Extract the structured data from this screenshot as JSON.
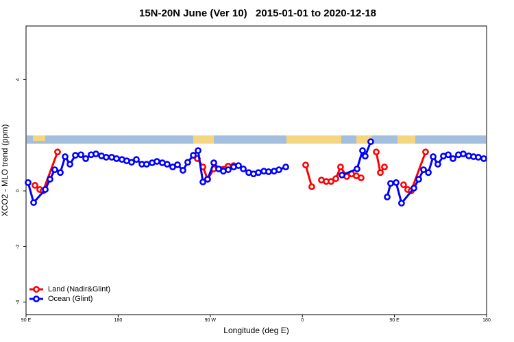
{
  "chart_data": {
    "type": "line",
    "title": "15N-20N June (Ver 10)   2015-01-01 to 2020-12-18",
    "xlabel": "Longitude (deg E)",
    "ylabel": "XCO2 - MLO trend (ppm)",
    "xlim": [
      90,
      540
    ],
    "xticks": [
      {
        "value": 90,
        "label": "90 E"
      },
      180,
      {
        "value": 270,
        "label": "90 W"
      },
      {
        "value": 360,
        "label": "0"
      },
      {
        "value": 450,
        "label": "90 E"
      },
      {
        "value": 540,
        "label": "180"
      }
    ],
    "ylim": [
      -4.45,
      5.93
    ],
    "yticks": [
      -4,
      -2,
      0,
      4
    ],
    "legend": "bottom-left",
    "series": [
      {
        "name": "Land (Nadir&Glint)",
        "color": "#ff0000",
        "x": [
          98.7,
          103.4,
          106.7,
          120.8,
          null,
          257.4,
          262.8,
          267.4,
          273.5,
          287.5,
          292.9,
          null,
          363.2,
          369.2,
          null,
          378.6,
          383.3,
          388.0,
          392.7,
          397.3,
          403.4,
          408.1,
          412.7,
          417.4,
          null,
          432.2,
          436.2,
          440.2,
          null,
          458.9,
          462.9,
          466.3,
          480.4
        ],
        "values": [
          0.2,
          0.05,
          0.0,
          1.4,
          null,
          1.16,
          0.86,
          0.42,
          0.79,
          0.89,
          0.91,
          null,
          0.93,
          0.15,
          null,
          0.39,
          0.34,
          0.34,
          0.44,
          0.86,
          0.52,
          0.61,
          0.54,
          0.47,
          null,
          1.4,
          0.66,
          0.86,
          null,
          0.22,
          0.05,
          0.0,
          1.4
        ]
      },
      {
        "name": "Ocean (Glint)",
        "color": "#0000ff",
        "x": [
          92.0,
          97.4,
          108.8,
          113.4,
          118.1,
          123.5,
          128.2,
          132.9,
          138.2,
          143.6,
          148.3,
          153.6,
          158.3,
          163.7,
          168.3,
          173.7,
          178.4,
          183.7,
          188.4,
          193.1,
          197.8,
          203.2,
          207.8,
          213.2,
          217.9,
          223.2,
          227.9,
          233.3,
          238.0,
          243.3,
          248.0,
          253.4,
          258.1,
          262.8,
          267.4,
          273.5,
          278.2,
          282.8,
          287.5,
          292.9,
          297.6,
          302.3,
          307.6,
          312.3,
          317.0,
          322.4,
          327.0,
          332.4,
          337.1,
          343.8,
          null,
          398.7,
          413.4,
          418.8,
          421.4,
          426.8,
          null,
          442.9,
          446.2,
          451.6,
          456.9,
          469.0,
          473.7,
          478.4,
          483.1,
          487.8,
          492.4,
          497.8,
          502.5,
          507.2,
          512.5,
          517.2,
          522.6,
          527.3,
          531.9,
          537.3
        ],
        "values": [
          0.3,
          -0.42,
          0.05,
          0.42,
          0.76,
          0.66,
          1.23,
          0.96,
          1.28,
          1.3,
          1.16,
          1.3,
          1.33,
          1.26,
          1.21,
          1.21,
          1.16,
          1.13,
          1.08,
          1.03,
          1.13,
          0.96,
          0.96,
          1.01,
          1.06,
          1.01,
          0.96,
          0.86,
          0.94,
          0.74,
          1.03,
          1.28,
          1.45,
          0.32,
          0.42,
          1.01,
          0.79,
          0.71,
          0.76,
          0.86,
          0.91,
          0.79,
          0.66,
          0.61,
          0.66,
          0.71,
          0.69,
          0.71,
          0.76,
          0.86,
          null,
          0.57,
          0.79,
          1.45,
          1.25,
          1.77,
          null,
          -0.22,
          0.27,
          0.3,
          -0.44,
          0.1,
          0.42,
          0.76,
          0.66,
          1.23,
          0.96,
          1.25,
          1.3,
          1.16,
          1.3,
          1.33,
          1.26,
          1.23,
          1.21,
          1.16
        ]
      }
    ]
  }
}
